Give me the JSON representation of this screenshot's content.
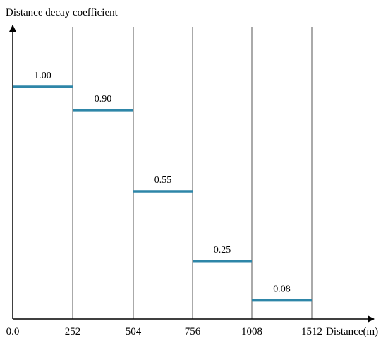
{
  "chart_data": {
    "type": "step",
    "ylabel": "Distance decay coefficient",
    "xlabel": "Distance(m)",
    "x_ticks": [
      "0.0",
      "252",
      "504",
      "756",
      "1008",
      "1512"
    ],
    "segments": [
      {
        "x_start": "0.0",
        "x_end": "252",
        "value": 1.0,
        "label": "1.00"
      },
      {
        "x_start": "252",
        "x_end": "504",
        "value": 0.9,
        "label": "0.90"
      },
      {
        "x_start": "504",
        "x_end": "756",
        "value": 0.55,
        "label": "0.55"
      },
      {
        "x_start": "756",
        "x_end": "1008",
        "value": 0.25,
        "label": "0.25"
      },
      {
        "x_start": "1008",
        "x_end": "1512",
        "value": 0.08,
        "label": "0.08"
      }
    ],
    "ylim": [
      0,
      1.0
    ],
    "grid": "vertical lines at x ticks",
    "colors": {
      "segment": "#2e86a8",
      "axis": "#000000",
      "grid": "#555555"
    }
  }
}
